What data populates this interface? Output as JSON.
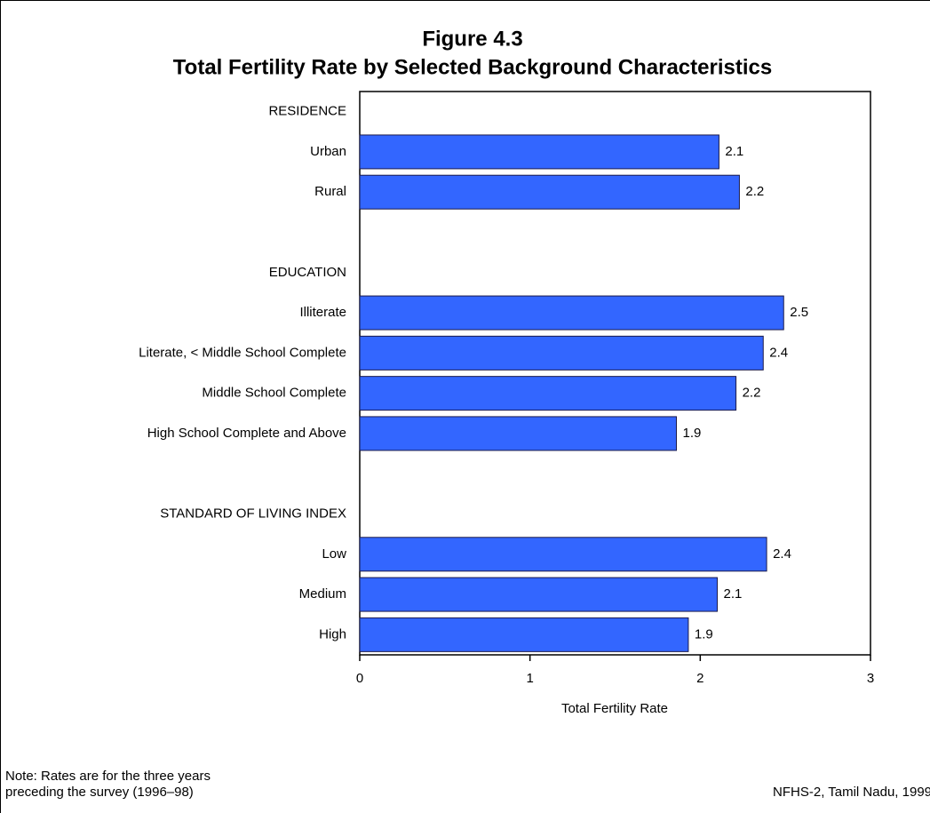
{
  "chart_data": {
    "type": "bar",
    "orientation": "horizontal",
    "title": [
      "Figure 4.3",
      "Total Fertility Rate by Selected Background Characteristics"
    ],
    "categories": [
      "RESIDENCE",
      "Urban",
      "Rural",
      null,
      "EDUCATION",
      "Illiterate",
      "Literate, < Middle School Complete",
      "Middle School Complete",
      "High School Complete and Above",
      null,
      "STANDARD OF LIVING INDEX",
      "Low",
      "Medium",
      "High"
    ],
    "values": [
      null,
      2.11,
      2.23,
      null,
      null,
      2.49,
      2.37,
      2.21,
      1.86,
      null,
      null,
      2.39,
      2.1,
      1.93
    ],
    "value_labels": [
      null,
      "2.1",
      "2.2",
      null,
      null,
      "2.5",
      "2.4",
      "2.2",
      "1.9",
      null,
      null,
      "2.4",
      "2.1",
      "1.9"
    ],
    "color": "#3366ff",
    "xlim": [
      0,
      3
    ],
    "xticks": [
      0,
      1,
      2,
      3
    ],
    "xlabel": "Total Fertility Rate",
    "note": [
      "Note: Rates are for the three years",
      "preceding the survey (1996–98)"
    ],
    "source": "NFHS-2, Tamil Nadu, 1999"
  }
}
